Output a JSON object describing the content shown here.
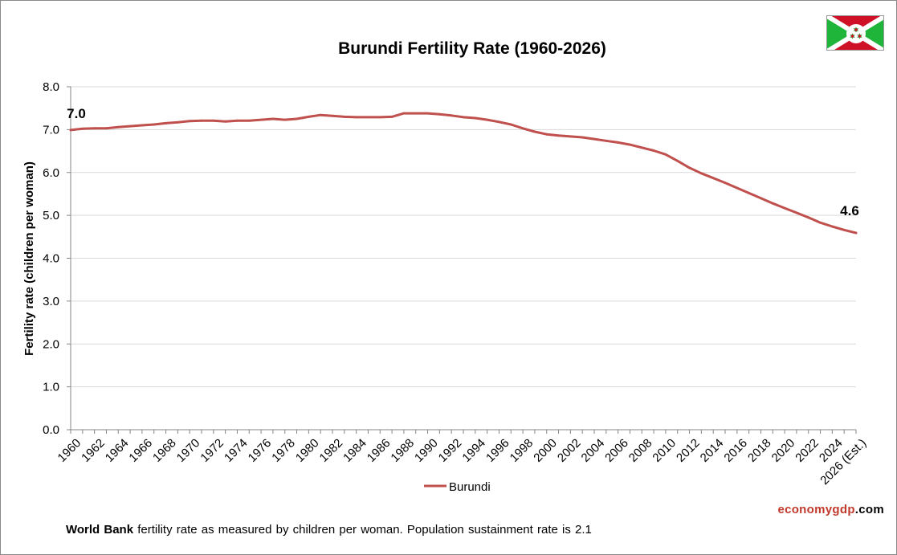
{
  "colors": {
    "line": "#c0504d",
    "grid": "#d9d9d9",
    "axis": "#868686",
    "brand_accent": "#c0392b",
    "flag_red": "#ce1126",
    "flag_green": "#1eb53a"
  },
  "icons": {
    "flag": "burundi-flag-icon"
  },
  "brand": {
    "part1": "economy",
    "part2": "gdp",
    "part3": ".com"
  },
  "footnote": {
    "bold": "World Bank",
    "text": " fertility rate as measured by children per woman.  Population sustainment rate is 2.1"
  },
  "chart_data": {
    "type": "line",
    "title": "Burundi Fertility Rate (1960-2026)",
    "xlabel": "",
    "ylabel": "Fertility rate (children per woman)",
    "ylim": [
      0,
      8
    ],
    "yticks": [
      0,
      1,
      2,
      3,
      4,
      5,
      6,
      7,
      8
    ],
    "ytick_labels": [
      "0.0",
      "1.0",
      "2.0",
      "3.0",
      "4.0",
      "5.0",
      "6.0",
      "7.0",
      "8.0"
    ],
    "xtick_labels": [
      "1960",
      "1962",
      "1964",
      "1966",
      "1968",
      "1970",
      "1972",
      "1974",
      "1976",
      "1978",
      "1980",
      "1982",
      "1984",
      "1986",
      "1988",
      "1990",
      "1992",
      "1994",
      "1996",
      "1998",
      "2000",
      "2002",
      "2004",
      "2006",
      "2008",
      "2010",
      "2012",
      "2014",
      "2016",
      "2018",
      "2020",
      "2022",
      "2024",
      "2026 (Est.)"
    ],
    "grid": true,
    "legend_position": "bottom",
    "categories": [
      "1960",
      "1961",
      "1962",
      "1963",
      "1964",
      "1965",
      "1966",
      "1967",
      "1968",
      "1969",
      "1970",
      "1971",
      "1972",
      "1973",
      "1974",
      "1975",
      "1976",
      "1977",
      "1978",
      "1979",
      "1980",
      "1981",
      "1982",
      "1983",
      "1984",
      "1985",
      "1986",
      "1987",
      "1988",
      "1989",
      "1990",
      "1991",
      "1992",
      "1993",
      "1994",
      "1995",
      "1996",
      "1997",
      "1998",
      "1999",
      "2000",
      "2001",
      "2002",
      "2003",
      "2004",
      "2005",
      "2006",
      "2007",
      "2008",
      "2009",
      "2010",
      "2011",
      "2012",
      "2013",
      "2014",
      "2015",
      "2016",
      "2017",
      "2018",
      "2019",
      "2020",
      "2021",
      "2022",
      "2023",
      "2024",
      "2025",
      "2026 (Est.)"
    ],
    "series": [
      {
        "name": "Burundi",
        "values": [
          6.99,
          7.02,
          7.03,
          7.03,
          7.06,
          7.08,
          7.1,
          7.12,
          7.15,
          7.17,
          7.2,
          7.21,
          7.21,
          7.19,
          7.21,
          7.21,
          7.23,
          7.25,
          7.23,
          7.25,
          7.3,
          7.34,
          7.32,
          7.3,
          7.29,
          7.29,
          7.29,
          7.3,
          7.38,
          7.38,
          7.38,
          7.36,
          7.33,
          7.29,
          7.27,
          7.23,
          7.18,
          7.12,
          7.03,
          6.95,
          6.89,
          6.86,
          6.84,
          6.82,
          6.78,
          6.74,
          6.7,
          6.65,
          6.58,
          6.51,
          6.42,
          6.27,
          6.11,
          5.98,
          5.87,
          5.76,
          5.64,
          5.52,
          5.4,
          5.28,
          5.17,
          5.06,
          4.95,
          4.83,
          4.74,
          4.66,
          4.59
        ]
      }
    ],
    "annotations": [
      {
        "label": "7.0"
      },
      {
        "label": "4.6"
      }
    ]
  }
}
